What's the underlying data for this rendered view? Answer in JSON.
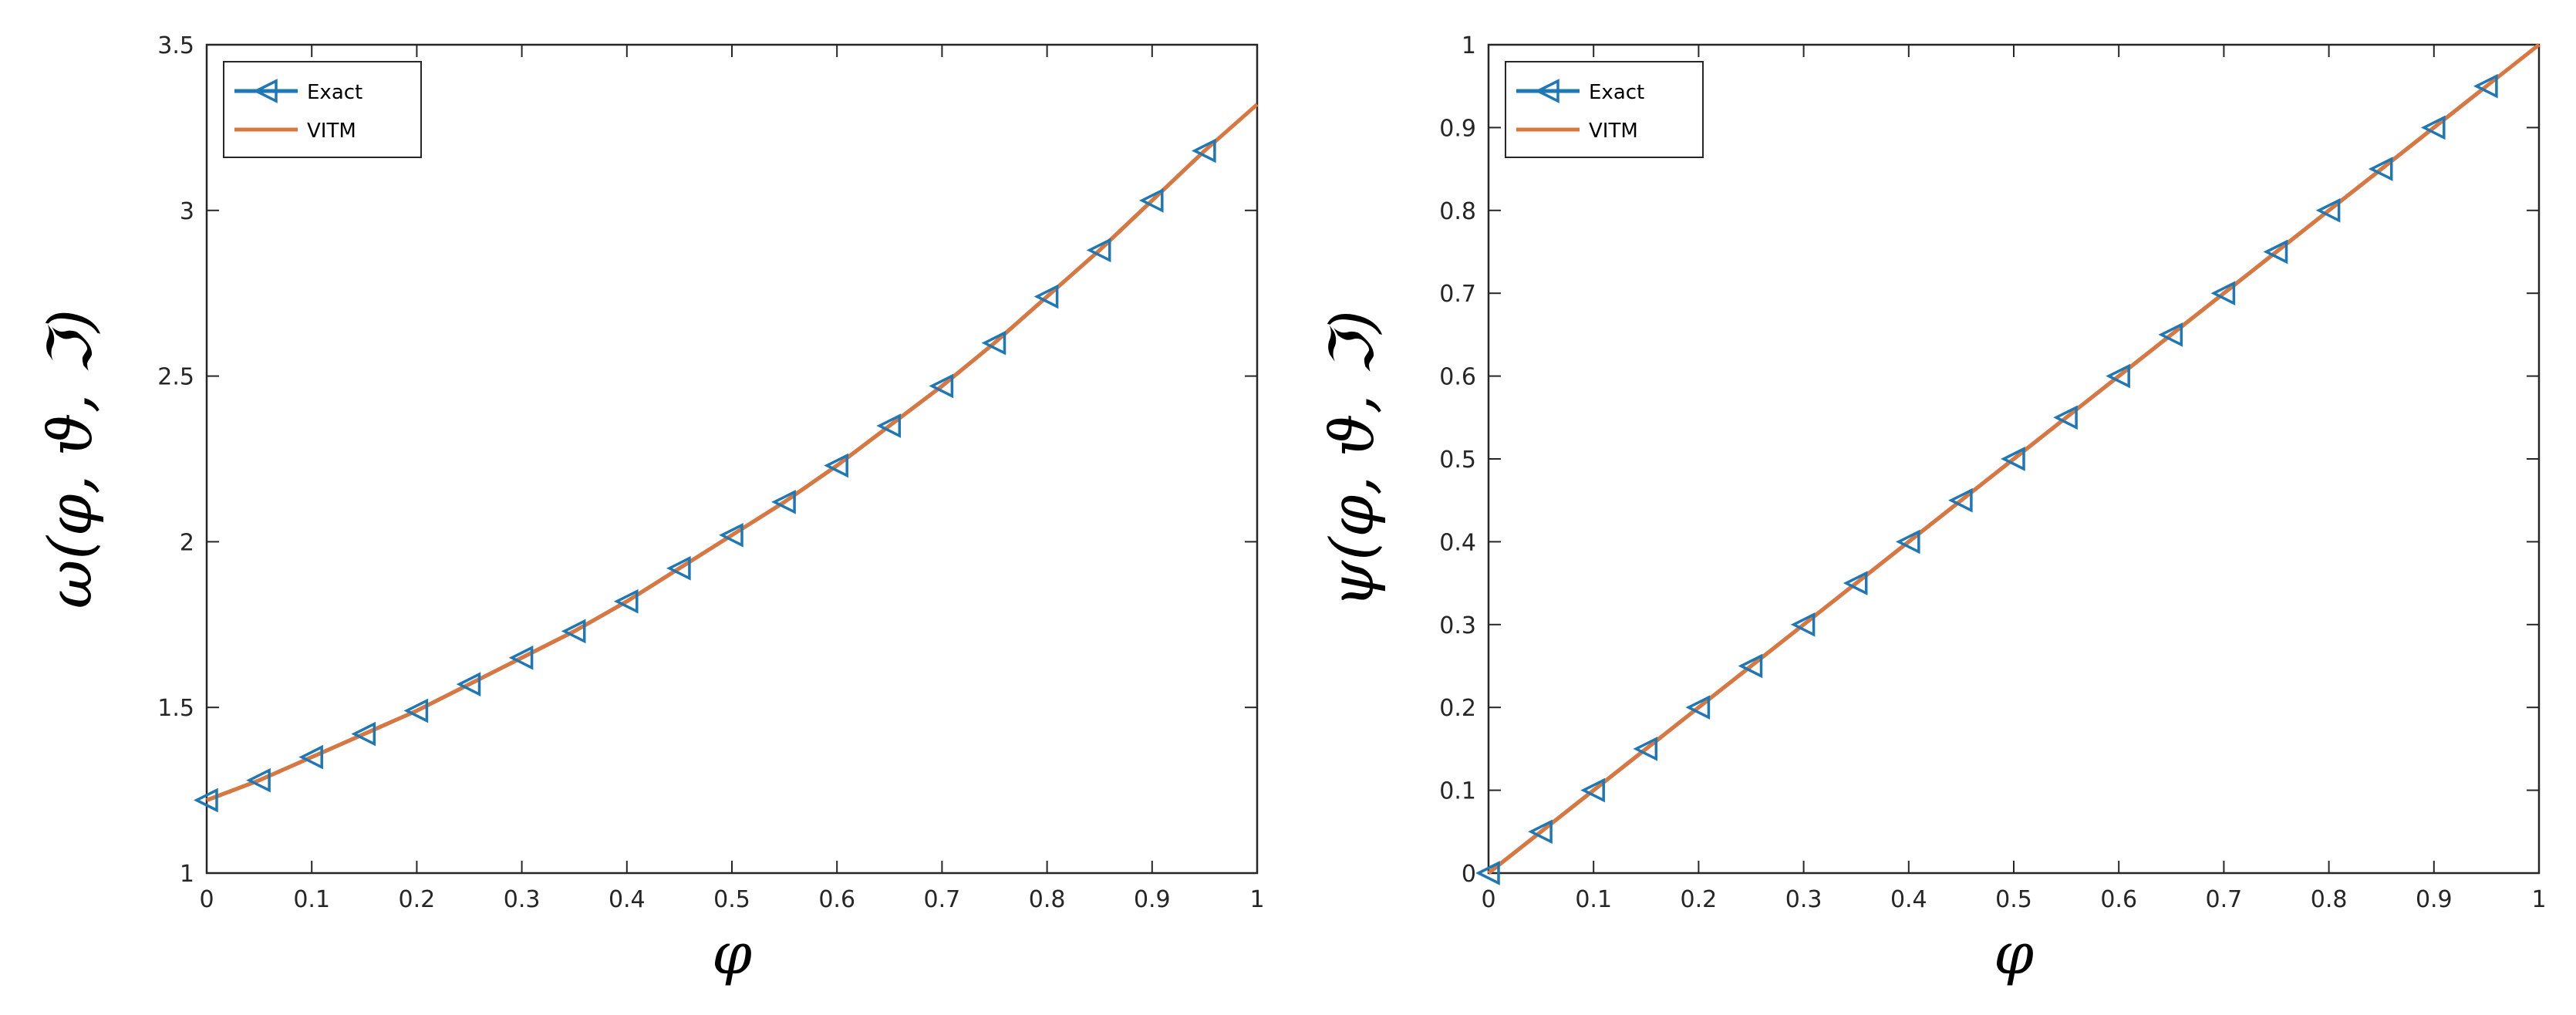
{
  "chart_data": [
    {
      "type": "line",
      "xlabel": "φ",
      "ylabel": "ω(φ, ϑ, ℑ)",
      "xlim": [
        0,
        1
      ],
      "ylim": [
        1,
        3.5
      ],
      "xticks": [
        "0",
        "0.1",
        "0.2",
        "0.3",
        "0.4",
        "0.5",
        "0.6",
        "0.7",
        "0.8",
        "0.9",
        "1"
      ],
      "yticks": [
        "1",
        "1.5",
        "2",
        "2.5",
        "3",
        "3.5"
      ],
      "grid": false,
      "legend_position": "top-left",
      "x": [
        0,
        0.05,
        0.1,
        0.15,
        0.2,
        0.25,
        0.3,
        0.35,
        0.4,
        0.45,
        0.5,
        0.55,
        0.6,
        0.65,
        0.7,
        0.75,
        0.8,
        0.85,
        0.9,
        0.95,
        1
      ],
      "series": [
        {
          "name": "Exact",
          "color": "#1f77b4",
          "marker": "triangle-left",
          "x": [
            0,
            0.05,
            0.1,
            0.15,
            0.2,
            0.25,
            0.3,
            0.35,
            0.4,
            0.45,
            0.5,
            0.55,
            0.6,
            0.65,
            0.7,
            0.75,
            0.8,
            0.85,
            0.9,
            0.95
          ],
          "values": [
            1.22,
            1.28,
            1.35,
            1.42,
            1.49,
            1.57,
            1.65,
            1.73,
            1.82,
            1.92,
            2.02,
            2.12,
            2.23,
            2.35,
            2.47,
            2.6,
            2.74,
            2.88,
            3.03,
            3.18
          ]
        },
        {
          "name": "VITM",
          "color": "#d9773f",
          "marker": "none",
          "x": [
            0,
            0.05,
            0.1,
            0.15,
            0.2,
            0.25,
            0.3,
            0.35,
            0.4,
            0.45,
            0.5,
            0.55,
            0.6,
            0.65,
            0.7,
            0.75,
            0.8,
            0.85,
            0.9,
            0.95,
            1
          ],
          "values": [
            1.22,
            1.28,
            1.35,
            1.42,
            1.49,
            1.57,
            1.65,
            1.73,
            1.82,
            1.92,
            2.02,
            2.12,
            2.23,
            2.35,
            2.47,
            2.6,
            2.74,
            2.88,
            3.03,
            3.18,
            3.32
          ]
        }
      ]
    },
    {
      "type": "line",
      "xlabel": "φ",
      "ylabel": "ψ(φ, ϑ, ℑ)",
      "xlim": [
        0,
        1
      ],
      "ylim": [
        0,
        1
      ],
      "xticks": [
        "0",
        "0.1",
        "0.2",
        "0.3",
        "0.4",
        "0.5",
        "0.6",
        "0.7",
        "0.8",
        "0.9",
        "1"
      ],
      "yticks": [
        "0",
        "0.1",
        "0.2",
        "0.3",
        "0.4",
        "0.5",
        "0.6",
        "0.7",
        "0.8",
        "0.9",
        "1"
      ],
      "grid": false,
      "legend_position": "top-left",
      "series": [
        {
          "name": "Exact",
          "color": "#1f77b4",
          "marker": "triangle-left",
          "x": [
            0,
            0.05,
            0.1,
            0.15,
            0.2,
            0.25,
            0.3,
            0.35,
            0.4,
            0.45,
            0.5,
            0.55,
            0.6,
            0.65,
            0.7,
            0.75,
            0.8,
            0.85,
            0.9,
            0.95
          ],
          "values": [
            0,
            0.05,
            0.1,
            0.15,
            0.2,
            0.25,
            0.3,
            0.35,
            0.4,
            0.45,
            0.5,
            0.55,
            0.6,
            0.65,
            0.7,
            0.75,
            0.8,
            0.85,
            0.9,
            0.95
          ]
        },
        {
          "name": "VITM",
          "color": "#d9773f",
          "marker": "none",
          "x": [
            0,
            0.05,
            0.1,
            0.15,
            0.2,
            0.25,
            0.3,
            0.35,
            0.4,
            0.45,
            0.5,
            0.55,
            0.6,
            0.65,
            0.7,
            0.75,
            0.8,
            0.85,
            0.9,
            0.95,
            1
          ],
          "values": [
            0,
            0.05,
            0.1,
            0.15,
            0.2,
            0.25,
            0.3,
            0.35,
            0.4,
            0.45,
            0.5,
            0.55,
            0.6,
            0.65,
            0.7,
            0.75,
            0.8,
            0.85,
            0.9,
            0.95,
            1
          ]
        }
      ]
    }
  ]
}
